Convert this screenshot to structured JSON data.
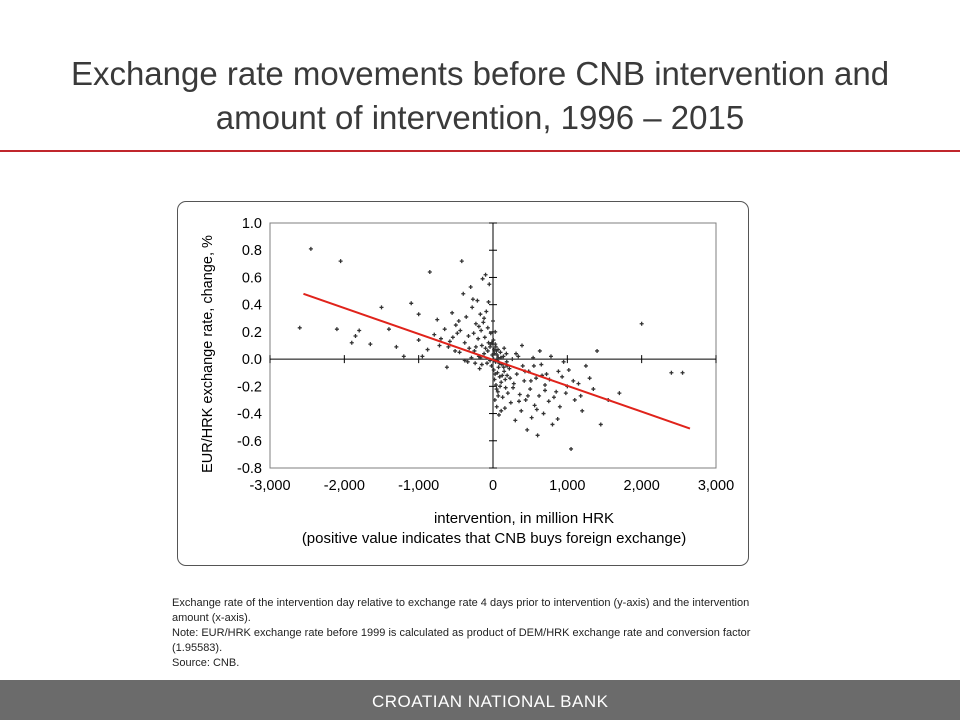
{
  "slide": {
    "title_line1": "Exchange rate movements before CNB intervention and",
    "title_line2": "amount of intervention, 1996 – 2015",
    "accent_color": "#c0262c"
  },
  "chart_data": {
    "type": "scatter",
    "ylabel": "EUR/HRK exchange rate, change, %",
    "xlabel_line1": "intervention, in million HRK",
    "xlabel_line2": "(positive value indicates that CNB buys foreign exchange)",
    "xlim": [
      -3000,
      3000
    ],
    "ylim": [
      -0.8,
      1.0
    ],
    "x_ticks": [
      -3000,
      -2000,
      -1000,
      0,
      1000,
      2000,
      3000
    ],
    "x_tick_labels": [
      "-3,000",
      "-2,000",
      "-1,000",
      "0",
      "1,000",
      "2,000",
      "3,000"
    ],
    "y_ticks": [
      1.0,
      0.8,
      0.6,
      0.4,
      0.2,
      0.0,
      -0.2,
      -0.4,
      -0.6,
      -0.8
    ],
    "y_tick_labels": [
      "1.0",
      "0.8",
      "0.6",
      "0.4",
      "0.2",
      "0.0",
      "-0.2",
      "-0.4",
      "-0.6",
      "-0.8"
    ],
    "grid": false,
    "point_color": "#333333",
    "trend_color": "#e0231b",
    "trendline": {
      "x": [
        -2550,
        2650
      ],
      "y": [
        0.48,
        -0.51
      ]
    },
    "points": [
      [
        -2450,
        0.81
      ],
      [
        -2600,
        0.23
      ],
      [
        -2050,
        0.72
      ],
      [
        -2100,
        0.22
      ],
      [
        -1500,
        0.38
      ],
      [
        -1650,
        0.11
      ],
      [
        -1400,
        0.22
      ],
      [
        -1300,
        0.09
      ],
      [
        -1900,
        0.12
      ],
      [
        -1850,
        0.17
      ],
      [
        -1800,
        0.21
      ],
      [
        -1200,
        0.02
      ],
      [
        -1100,
        0.41
      ],
      [
        -1000,
        0.14
      ],
      [
        -950,
        0.02
      ],
      [
        -850,
        0.64
      ],
      [
        -750,
        0.29
      ],
      [
        -700,
        0.15
      ],
      [
        -650,
        0.22
      ],
      [
        -600,
        0.09
      ],
      [
        -550,
        0.34
      ],
      [
        -500,
        0.25
      ],
      [
        -480,
        0.19
      ],
      [
        -450,
        0.05
      ],
      [
        -420,
        0.72
      ],
      [
        -400,
        0.48
      ],
      [
        -380,
        0.12
      ],
      [
        -360,
        0.31
      ],
      [
        -340,
        -0.02
      ],
      [
        -320,
        0.08
      ],
      [
        -300,
        0.53
      ],
      [
        -280,
        0.38
      ],
      [
        -260,
        0.19
      ],
      [
        -250,
        0.06
      ],
      [
        -230,
        0.26
      ],
      [
        -210,
        0.43
      ],
      [
        -200,
        0.15
      ],
      [
        -190,
        0.02
      ],
      [
        -180,
        -0.07
      ],
      [
        -170,
        0.33
      ],
      [
        -160,
        0.21
      ],
      [
        -150,
        0.1
      ],
      [
        -140,
        0.59
      ],
      [
        -130,
        0.27
      ],
      [
        -120,
        0.04
      ],
      [
        -110,
        0.16
      ],
      [
        -100,
        0.62
      ],
      [
        -90,
        0.35
      ],
      [
        -80,
        -0.03
      ],
      [
        -70,
        0.23
      ],
      [
        -60,
        0.12
      ],
      [
        -50,
        0.55
      ],
      [
        -40,
        0.09
      ],
      [
        -30,
        0.19
      ],
      [
        -20,
        -0.05
      ],
      [
        -10,
        0.03
      ],
      [
        0,
        0.28
      ],
      [
        5,
        0.14
      ],
      [
        10,
        -0.08
      ],
      [
        15,
        0.07
      ],
      [
        20,
        -0.15
      ],
      [
        25,
        -0.3
      ],
      [
        30,
        0.11
      ],
      [
        35,
        -0.02
      ],
      [
        40,
        -0.19
      ],
      [
        45,
        0.06
      ],
      [
        50,
        -0.35
      ],
      [
        55,
        0.03
      ],
      [
        60,
        -0.1
      ],
      [
        65,
        -0.24
      ],
      [
        70,
        0.01
      ],
      [
        75,
        -0.06
      ],
      [
        80,
        -0.41
      ],
      [
        90,
        -0.13
      ],
      [
        100,
        0.05
      ],
      [
        110,
        -0.17
      ],
      [
        120,
        -0.04
      ],
      [
        130,
        -0.28
      ],
      [
        140,
        0.02
      ],
      [
        150,
        -0.09
      ],
      [
        160,
        -0.36
      ],
      [
        170,
        -0.21
      ],
      [
        180,
        0.04
      ],
      [
        190,
        -0.12
      ],
      [
        200,
        -0.25
      ],
      [
        220,
        -0.07
      ],
      [
        240,
        -0.32
      ],
      [
        260,
        0.0
      ],
      [
        280,
        -0.18
      ],
      [
        300,
        -0.45
      ],
      [
        320,
        -0.11
      ],
      [
        340,
        0.02
      ],
      [
        360,
        -0.26
      ],
      [
        380,
        -0.38
      ],
      [
        400,
        -0.05
      ],
      [
        420,
        -0.16
      ],
      [
        440,
        -0.3
      ],
      [
        460,
        -0.52
      ],
      [
        480,
        -0.09
      ],
      [
        500,
        -0.22
      ],
      [
        520,
        -0.43
      ],
      [
        540,
        0.01
      ],
      [
        560,
        -0.34
      ],
      [
        580,
        -0.14
      ],
      [
        600,
        -0.56
      ],
      [
        620,
        -0.27
      ],
      [
        650,
        -0.04
      ],
      [
        680,
        -0.4
      ],
      [
        700,
        -0.19
      ],
      [
        720,
        -0.11
      ],
      [
        750,
        -0.31
      ],
      [
        780,
        0.02
      ],
      [
        800,
        -0.48
      ],
      [
        850,
        -0.24
      ],
      [
        880,
        -0.09
      ],
      [
        900,
        -0.35
      ],
      [
        950,
        -0.02
      ],
      [
        1000,
        -0.2
      ],
      [
        1050,
        -0.66
      ],
      [
        1100,
        -0.3
      ],
      [
        1150,
        -0.18
      ],
      [
        1200,
        -0.38
      ],
      [
        1250,
        -0.05
      ],
      [
        1300,
        -0.14
      ],
      [
        1350,
        -0.22
      ],
      [
        1400,
        0.06
      ],
      [
        1450,
        -0.48
      ],
      [
        1550,
        -0.3
      ],
      [
        1700,
        -0.25
      ],
      [
        2000,
        0.26
      ],
      [
        2400,
        -0.1
      ],
      [
        2550,
        -0.1
      ],
      [
        -1000,
        0.33
      ],
      [
        -620,
        -0.06
      ],
      [
        -540,
        0.16
      ],
      [
        -460,
        0.28
      ],
      [
        -270,
        0.44
      ],
      [
        -230,
        0.09
      ],
      [
        -170,
        0.01
      ],
      [
        -120,
        0.3
      ],
      [
        -60,
        0.42
      ],
      [
        -30,
        0.11
      ],
      [
        30,
        0.2
      ],
      [
        70,
        -0.27
      ],
      [
        110,
        -0.38
      ],
      [
        150,
        0.08
      ],
      [
        190,
        -0.05
      ],
      [
        230,
        -0.14
      ],
      [
        270,
        -0.21
      ],
      [
        310,
        0.04
      ],
      [
        350,
        -0.31
      ],
      [
        390,
        0.1
      ],
      [
        430,
        -0.09
      ],
      [
        470,
        -0.27
      ],
      [
        510,
        -0.16
      ],
      [
        550,
        -0.05
      ],
      [
        590,
        -0.37
      ],
      [
        630,
        0.06
      ],
      [
        660,
        -0.12
      ],
      [
        700,
        -0.23
      ],
      [
        760,
        -0.15
      ],
      [
        820,
        -0.28
      ],
      [
        870,
        -0.44
      ],
      [
        930,
        -0.13
      ],
      [
        980,
        -0.25
      ],
      [
        1020,
        -0.08
      ],
      [
        1080,
        -0.16
      ],
      [
        1180,
        -0.27
      ],
      [
        -880,
        0.07
      ],
      [
        -790,
        0.18
      ],
      [
        -720,
        0.1
      ],
      [
        -580,
        0.13
      ],
      [
        -510,
        0.06
      ],
      [
        -440,
        0.21
      ],
      [
        -380,
        -0.01
      ],
      [
        -330,
        0.17
      ],
      [
        -290,
        0.01
      ],
      [
        -240,
        -0.03
      ],
      [
        -190,
        0.24
      ],
      [
        -150,
        -0.04
      ],
      [
        -100,
        0.08
      ],
      [
        -70,
        0.06
      ],
      [
        -40,
        -0.01
      ],
      [
        -15,
        0.12
      ],
      [
        8,
        0.0
      ],
      [
        18,
        0.04
      ],
      [
        28,
        -0.11
      ],
      [
        38,
        0.09
      ],
      [
        48,
        -0.22
      ],
      [
        58,
        -0.01
      ],
      [
        68,
        0.07
      ],
      [
        85,
        -0.03
      ],
      [
        95,
        -0.2
      ],
      [
        105,
        0.01
      ],
      [
        125,
        -0.12
      ],
      [
        145,
        -0.06
      ],
      [
        165,
        -0.15
      ],
      [
        185,
        -0.02
      ]
    ]
  },
  "caption": {
    "line1": "Exchange rate of the intervention day relative to exchange rate 4 days prior to intervention (y-axis) and the intervention",
    "line2": "amount (x-axis).",
    "line3": "Note: EUR/HRK exchange rate before 1999 is calculated as product of DEM/HRK exchange rate and conversion factor",
    "line4": "(1.95583).",
    "line5": "Source: CNB."
  },
  "footer": {
    "org_name": "CROATIAN NATIONAL BANK",
    "bar_color": "#6b6b6b"
  }
}
